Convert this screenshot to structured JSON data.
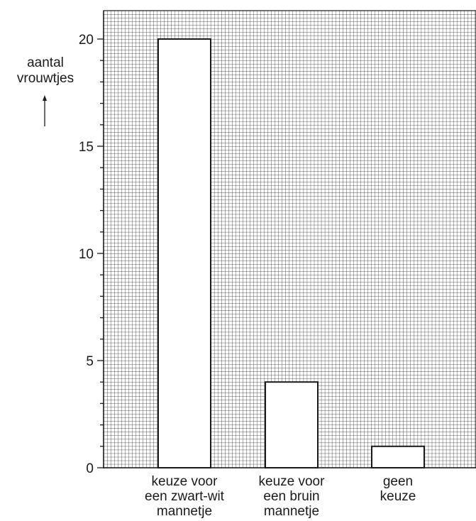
{
  "chart_data": {
    "type": "bar",
    "ylabel": [
      "aantal",
      "vrouwtjes"
    ],
    "ylim": [
      0,
      20
    ],
    "yticks": [
      0,
      5,
      10,
      15,
      20
    ],
    "grid": true,
    "categories": [
      [
        "keuze voor",
        "een zwart-wit",
        "mannetje"
      ],
      [
        "keuze voor",
        "een bruin",
        "mannetje"
      ],
      [
        "geen",
        "keuze"
      ]
    ],
    "values": [
      20,
      4,
      1
    ]
  }
}
